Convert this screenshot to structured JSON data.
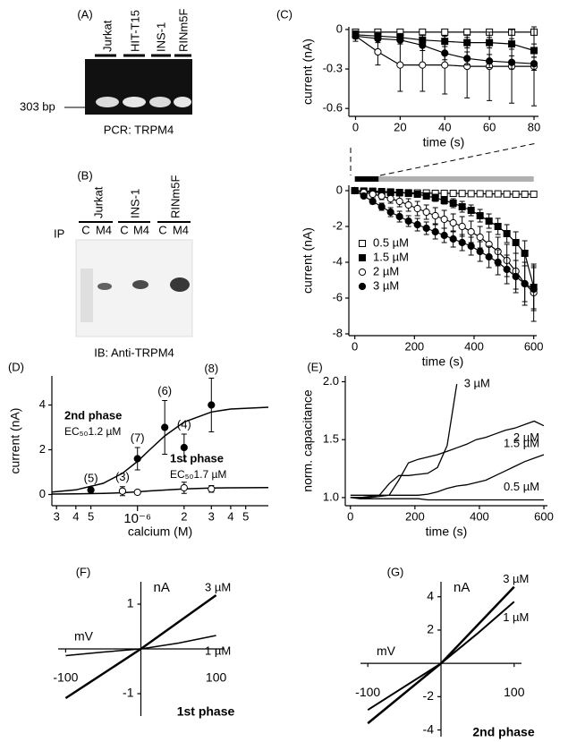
{
  "gel_a": {
    "label": "(A)",
    "lanes": [
      "Jurkat",
      "HIT-T15",
      "INS-1",
      "RINm5F"
    ],
    "marker": "303 bp",
    "caption": "PCR: TRPM4"
  },
  "gel_b": {
    "label": "(B)",
    "groups": [
      "Jurkat",
      "INS-1",
      "RINm5F"
    ],
    "lanes": [
      "C",
      "M4",
      "C",
      "M4",
      "C",
      "M4"
    ],
    "ip_label": "IP",
    "caption": "IB: Anti-TRPM4"
  },
  "chart_data": [
    {
      "type": "line",
      "label": "(C)",
      "xlabel": "time (s)",
      "ylabel": "current (nA)",
      "axes": "left-bottom",
      "x": [
        0,
        10,
        20,
        30,
        40,
        50,
        60,
        70,
        80
      ],
      "xlim": [
        -3,
        82
      ],
      "xticks": [
        0,
        20,
        40,
        60,
        80
      ],
      "ylim": [
        -0.66,
        0.02
      ],
      "yticks": [
        0,
        -0.3,
        -0.6
      ],
      "series": [
        {
          "marker": "square",
          "filled": false,
          "color": "#000000",
          "values": [
            -0.02,
            -0.02,
            -0.02,
            -0.02,
            -0.02,
            -0.02,
            -0.02,
            -0.02,
            -0.02
          ],
          "errors": [
            0.01,
            0.01,
            0.01,
            0.01,
            0.01,
            0.01,
            0.01,
            0.01,
            0.01
          ]
        },
        {
          "marker": "square",
          "filled": true,
          "color": "#000000",
          "values": [
            -0.04,
            -0.05,
            -0.06,
            -0.08,
            -0.09,
            -0.1,
            -0.1,
            -0.11,
            -0.16
          ],
          "errors": [
            0.02,
            0.03,
            0.03,
            0.04,
            0.04,
            0.04,
            0.04,
            0.04,
            0.05
          ]
        },
        {
          "marker": "circle",
          "filled": false,
          "color": "#000000",
          "values": [
            -0.05,
            -0.17,
            -0.27,
            -0.27,
            -0.27,
            -0.28,
            -0.28,
            -0.28,
            -0.28
          ],
          "errors": [
            0.04,
            0.1,
            0.2,
            0.2,
            0.22,
            0.24,
            0.26,
            0.28,
            0.3
          ]
        },
        {
          "marker": "circle",
          "filled": true,
          "color": "#000000",
          "values": [
            -0.05,
            -0.07,
            -0.08,
            -0.12,
            -0.18,
            -0.22,
            -0.24,
            -0.25,
            -0.26
          ],
          "errors": [
            0.02,
            0.03,
            0.03,
            0.04,
            0.05,
            0.05,
            0.05,
            0.05,
            0.05
          ]
        }
      ]
    },
    {
      "type": "line",
      "xlabel": "time (s)",
      "ylabel": "current (nA)",
      "axes": "left-bottom",
      "legend": "left",
      "x": [
        0,
        30,
        60,
        90,
        120,
        150,
        180,
        210,
        240,
        270,
        300,
        330,
        360,
        390,
        420,
        450,
        480,
        510,
        540,
        570,
        600
      ],
      "xlim": [
        -20,
        610
      ],
      "xticks": [
        0,
        200,
        400,
        600
      ],
      "ylim": [
        -8.1,
        0.3
      ],
      "yticks": [
        0,
        -2,
        -4,
        -6,
        -8
      ],
      "stimulus": [
        {
          "from": 0,
          "to": 80,
          "color": "#000000"
        },
        {
          "from": 80,
          "to": 600,
          "color": "#b0b0b0"
        }
      ],
      "series": [
        {
          "name": "0.5 µM",
          "marker": "square",
          "filled": false,
          "color": "#000000",
          "values": [
            0,
            -0.05,
            -0.08,
            -0.1,
            -0.1,
            -0.12,
            -0.12,
            -0.13,
            -0.13,
            -0.15,
            -0.15,
            -0.15,
            -0.16,
            -0.17,
            -0.17,
            -0.18,
            -0.18,
            -0.19,
            -0.2,
            -0.2,
            -0.2
          ],
          "errors": [
            0,
            0.03,
            0.03,
            0.04,
            0.04,
            0.04,
            0.05,
            0.05,
            0.05,
            0.05,
            0.05,
            0.05,
            0.06,
            0.06,
            0.06,
            0.06,
            0.07,
            0.07,
            0.07,
            0.07,
            0.08
          ]
        },
        {
          "name": "1.5 µM",
          "marker": "square",
          "filled": true,
          "color": "#000000",
          "values": [
            0,
            -0.02,
            -0.03,
            -0.05,
            -0.07,
            -0.1,
            -0.15,
            -0.2,
            -0.3,
            -0.4,
            -0.55,
            -0.7,
            -0.9,
            -1.1,
            -1.4,
            -1.7,
            -2.0,
            -2.4,
            -2.9,
            -3.5,
            -5.4
          ],
          "errors": [
            0,
            0.05,
            0.05,
            0.05,
            0.1,
            0.1,
            0.1,
            0.15,
            0.15,
            0.2,
            0.2,
            0.25,
            0.3,
            0.3,
            0.35,
            0.4,
            0.45,
            0.5,
            0.6,
            0.7,
            1.2
          ]
        },
        {
          "name": "2 µM",
          "marker": "circle",
          "filled": false,
          "color": "#000000",
          "values": [
            0,
            -0.1,
            -0.2,
            -0.3,
            -0.45,
            -0.6,
            -0.8,
            -1.0,
            -1.2,
            -1.4,
            -1.6,
            -1.8,
            -2.0,
            -2.3,
            -2.6,
            -3.0,
            -3.4,
            -3.9,
            -4.5,
            -5.2,
            -5.7
          ],
          "errors": [
            0,
            0.1,
            0.15,
            0.2,
            0.25,
            0.3,
            0.35,
            0.4,
            0.4,
            0.45,
            0.5,
            0.5,
            0.55,
            0.6,
            0.6,
            0.7,
            0.8,
            0.9,
            1.0,
            1.2,
            1.6
          ]
        },
        {
          "name": "3 µM",
          "marker": "circle",
          "filled": true,
          "color": "#000000",
          "values": [
            0,
            -0.3,
            -0.6,
            -0.9,
            -1.2,
            -1.45,
            -1.7,
            -1.9,
            -2.1,
            -2.3,
            -2.5,
            -2.7,
            -2.9,
            -3.1,
            -3.4,
            -3.7,
            -4.0,
            -4.4,
            -4.8,
            -5.2,
            -5.5
          ],
          "errors": [
            0,
            0.1,
            0.15,
            0.2,
            0.25,
            0.3,
            0.3,
            0.35,
            0.35,
            0.4,
            0.4,
            0.45,
            0.45,
            0.5,
            0.55,
            0.6,
            0.7,
            0.8,
            0.9,
            1.0,
            1.2
          ]
        }
      ]
    },
    {
      "type": "scatter",
      "label": "(D)",
      "xlabel": "calcium (M)",
      "ylabel": "current (nA)",
      "axes": "left-bottom",
      "xlog": true,
      "xlim": [
        2.8e-07,
        7e-06
      ],
      "xticks": [
        {
          "value": 3e-07,
          "label": "3"
        },
        {
          "value": 4e-07,
          "label": "4"
        },
        {
          "value": 5e-07,
          "label": "5"
        },
        {
          "value": 1e-06,
          "label": "10⁻⁶"
        },
        {
          "value": 2e-06,
          "label": "2"
        },
        {
          "value": 3e-06,
          "label": "3"
        },
        {
          "value": 4e-06,
          "label": "4"
        },
        {
          "value": 5e-06,
          "label": "5"
        }
      ],
      "ylim": [
        -0.5,
        5.3
      ],
      "yticks": [
        0,
        2,
        4
      ],
      "annotations": [
        "2nd phase",
        "EC₅₀1.2 µM",
        "1st phase",
        "EC₅₀1.7 µM"
      ],
      "series": [
        {
          "marker": "circle",
          "filled": true,
          "color": "#000000",
          "x": [
            5e-07,
            8e-07,
            1e-06,
            1.5e-06,
            2e-06,
            3e-06
          ],
          "values": [
            0.2,
            0.15,
            1.6,
            3.0,
            2.1,
            4.0
          ],
          "errors": [
            0.1,
            0.2,
            0.5,
            1.2,
            0.6,
            1.2
          ],
          "n_labels": [
            "(5)",
            "(3)",
            "(7)",
            "(6)",
            "(4)",
            "(8)"
          ]
        },
        {
          "marker": "circle",
          "filled": false,
          "color": "#000000",
          "x": [
            8e-07,
            1e-06,
            2e-06,
            3e-06
          ],
          "values": [
            0.15,
            0.1,
            0.3,
            0.25
          ],
          "errors": [
            0.1,
            0.1,
            0.25,
            0.15
          ]
        }
      ],
      "fits": [
        {
          "color": "#000000",
          "x": [
            2.8e-07,
            4e-07,
            6e-07,
            8e-07,
            1e-06,
            1.2e-06,
            1.5e-06,
            2e-06,
            3e-06,
            4e-06,
            7e-06
          ],
          "values": [
            0.11,
            0.21,
            0.5,
            0.95,
            1.48,
            2.0,
            2.62,
            3.24,
            3.69,
            3.82,
            3.9
          ]
        },
        {
          "color": "#000000",
          "x": [
            2.8e-07,
            4e-07,
            6e-07,
            8e-07,
            1e-06,
            1.2e-06,
            1.5e-06,
            2e-06,
            3e-06,
            4e-06,
            7e-06
          ],
          "values": [
            0.02,
            0.03,
            0.05,
            0.08,
            0.12,
            0.16,
            0.2,
            0.25,
            0.29,
            0.3,
            0.31
          ]
        }
      ]
    },
    {
      "type": "line",
      "label": "(E)",
      "xlabel": "time (s)",
      "ylabel": "norm. capacitance",
      "axes": "left-bottom",
      "x": [
        0,
        30,
        60,
        90,
        120,
        150,
        180,
        210,
        240,
        270,
        300,
        330,
        360,
        390,
        420,
        450,
        480,
        510,
        540,
        570,
        600
      ],
      "xlim": [
        -16,
        611
      ],
      "xticks": [
        0,
        200,
        400,
        600
      ],
      "ylim": [
        0.93,
        2.05
      ],
      "yticks": [
        {
          "value": 1,
          "label": "1.0"
        },
        1.5,
        {
          "value": 2,
          "label": "2.0"
        }
      ],
      "series": [
        {
          "name": "3 µM",
          "color": "#000000",
          "values": [
            1.0,
            1.0,
            1.01,
            1.02,
            1.12,
            1.19,
            1.19,
            1.2,
            1.21,
            1.26,
            1.45,
            1.98,
            null,
            null,
            null,
            null,
            null,
            null,
            null,
            null,
            null
          ]
        },
        {
          "name": "2 µM",
          "color": "#000000",
          "values": [
            1.0,
            1.0,
            1.0,
            1.01,
            1.02,
            1.15,
            1.3,
            1.33,
            1.35,
            1.37,
            1.4,
            1.43,
            1.46,
            1.5,
            1.52,
            1.55,
            1.58,
            1.6,
            1.63,
            1.66,
            1.62
          ]
        },
        {
          "name": "1.5 µM",
          "color": "#000000",
          "values": [
            1.02,
            1.02,
            1.02,
            1.02,
            1.02,
            1.02,
            1.02,
            1.02,
            1.03,
            1.05,
            1.08,
            1.1,
            1.11,
            1.13,
            1.15,
            1.19,
            1.23,
            1.27,
            1.31,
            1.34,
            1.37
          ]
        },
        {
          "name": "0.5 µM",
          "color": "#000000",
          "values": [
            1.0,
            0.99,
            0.99,
            0.99,
            0.99,
            0.99,
            0.99,
            0.99,
            0.98,
            0.98,
            0.98,
            0.98,
            0.98,
            0.98,
            0.98,
            0.98,
            0.98,
            0.98,
            0.98,
            0.98,
            0.98
          ]
        }
      ]
    },
    {
      "type": "line",
      "label": "(F)",
      "title": "1st phase",
      "xlabel": "mV",
      "ylabel": "nA",
      "axes": "cross",
      "xlim": [
        -110,
        110
      ],
      "xticks": [
        -100,
        100
      ],
      "ylim": [
        -1.5,
        1.5
      ],
      "yticks": [
        -1,
        1
      ],
      "series": [
        {
          "name": "3 µM",
          "color": "#000000",
          "line_width": 2.5,
          "x": [
            -100,
            -50,
            0,
            50,
            100
          ],
          "values": [
            -1.1,
            -0.55,
            0,
            0.6,
            1.2
          ]
        },
        {
          "name": "1 µM",
          "color": "#000000",
          "line_width": 1.5,
          "x": [
            -100,
            -50,
            0,
            50,
            100
          ],
          "values": [
            -0.15,
            -0.07,
            0,
            0.13,
            0.3
          ]
        }
      ]
    },
    {
      "type": "line",
      "label": "(G)",
      "title": "2nd phase",
      "xlabel": "mV",
      "ylabel": "nA",
      "axes": "cross",
      "xlim": [
        -110,
        110
      ],
      "xticks": [
        -100,
        100
      ],
      "ylim": [
        -4.4,
        4.9
      ],
      "yticks": [
        -4,
        -2,
        2,
        4
      ],
      "series": [
        {
          "name": "3 µM",
          "color": "#000000",
          "line_width": 2.5,
          "x": [
            -100,
            -50,
            0,
            50,
            100
          ],
          "values": [
            -3.6,
            -1.8,
            0,
            2.3,
            4.6
          ]
        },
        {
          "name": "1 µM",
          "color": "#000000",
          "line_width": 2,
          "x": [
            -100,
            -50,
            0,
            50,
            100
          ],
          "values": [
            -2.8,
            -1.4,
            0,
            1.8,
            3.7
          ]
        }
      ]
    }
  ]
}
